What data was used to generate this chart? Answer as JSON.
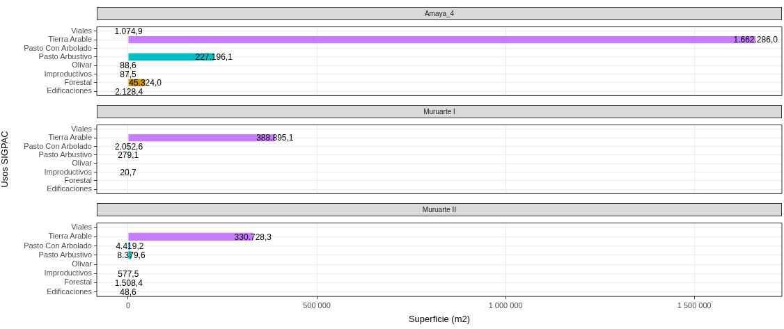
{
  "chart_data": [
    {
      "type": "bar",
      "orientation": "horizontal",
      "title": "Amaya_4",
      "categories": [
        "Viales",
        "Tierra Arable",
        "Pasto Con Arbolado",
        "Pasto Arbustivo",
        "Olivar",
        "Improductivos",
        "Forestal",
        "Edificaciones"
      ],
      "values": [
        1074.9,
        1662286.0,
        null,
        227196.1,
        88.6,
        87.5,
        45324.0,
        2128.4
      ],
      "value_labels": [
        "1.074,9",
        "1.662.286,0",
        null,
        "227.196,1",
        "88,6",
        "87,5",
        "45.324,0",
        "2.128,4"
      ],
      "colors": [
        "#ff61cc",
        "#c77cff",
        "#00a9ff",
        "#00bfc4",
        "#00be67",
        "#7cae00",
        "#cd9600",
        "#f8766d"
      ],
      "xlim": [
        -83000,
        1732000
      ],
      "grid": true,
      "tick_labels": "y"
    },
    {
      "type": "bar",
      "orientation": "horizontal",
      "title": "Muruarte I",
      "ylabel": "Usos SIGPAC",
      "categories": [
        "Viales",
        "Tierra Arable",
        "Pasto Con Arbolado",
        "Pasto Arbustivo",
        "Olivar",
        "Improductivos",
        "Forestal",
        "Edificaciones"
      ],
      "values": [
        null,
        388895.1,
        2052.6,
        279.1,
        null,
        20.7,
        null,
        null
      ],
      "value_labels": [
        null,
        "388.895,1",
        "2.052,6",
        "279,1",
        null,
        "20,7",
        null,
        null
      ],
      "colors": [
        "#ff61cc",
        "#c77cff",
        "#00a9ff",
        "#00bfc4",
        "#00be67",
        "#7cae00",
        "#cd9600",
        "#f8766d"
      ],
      "xlim": [
        -83000,
        1732000
      ],
      "grid": true,
      "tick_labels": "y"
    },
    {
      "type": "bar",
      "orientation": "horizontal",
      "title": "Muruarte II",
      "xlabel": "Superficie (m2)",
      "categories": [
        "Viales",
        "Tierra Arable",
        "Pasto Con Arbolado",
        "Pasto Arbustivo",
        "Olivar",
        "Improductivos",
        "Forestal",
        "Edificaciones"
      ],
      "values": [
        null,
        330728.3,
        4419.2,
        8379.6,
        null,
        577.5,
        1508.4,
        48.6
      ],
      "value_labels": [
        null,
        "330.728,3",
        "4.419,2",
        "8.379,6",
        null,
        "577,5",
        "1.508,4",
        "48,6"
      ],
      "colors": [
        "#ff61cc",
        "#c77cff",
        "#00a9ff",
        "#00bfc4",
        "#00be67",
        "#7cae00",
        "#cd9600",
        "#f8766d"
      ],
      "xlim": [
        -83000,
        1732000
      ],
      "xticks": [
        0,
        {
          "value": 500000,
          "label": "500 000"
        },
        {
          "value": 1000000,
          "label": "1 000 000"
        },
        {
          "value": 1500000,
          "label": "1 500 000"
        }
      ],
      "grid": true
    }
  ]
}
